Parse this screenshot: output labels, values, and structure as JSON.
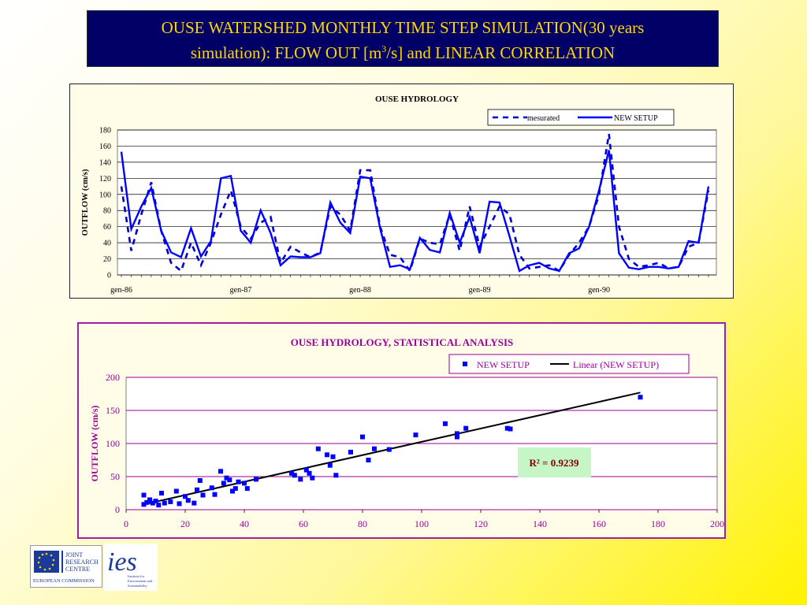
{
  "slide": {
    "title_line1": "OUSE WATERSHED MONTHLY TIME STEP SIMULATION(30 years",
    "title_line2_pre": "simulation): FLOW OUT [m",
    "title_sup": "3",
    "title_line2_post": "/s] and LINEAR CORRELATION"
  },
  "logos": {
    "jrc_lines": [
      "JOINT",
      "RESEARCH",
      "CENTRE"
    ],
    "jrc_org": "EUROPEAN COMMISSION",
    "ies_text": "ies",
    "ies_caption": [
      "Institute for",
      "Environment and",
      "Sustainability"
    ]
  },
  "chart_data": [
    {
      "type": "line",
      "title": "OUSE HYDROLOGY",
      "ylabel": "OUTFLOW (cm/s)",
      "xlabel": "",
      "ylim": [
        0,
        180
      ],
      "yticks": [
        0,
        20,
        40,
        60,
        80,
        100,
        120,
        140,
        160,
        180
      ],
      "xtick_labels": [
        "gen-86",
        "gen-87",
        "gen-88",
        "gen-89",
        "gen-90"
      ],
      "xtick_index": [
        0,
        12,
        24,
        36,
        48
      ],
      "n_points": 60,
      "grid": true,
      "legend_position": "top-right",
      "series": [
        {
          "name": "mesurated",
          "style": "dashed",
          "color": "#0000cc",
          "values": [
            110,
            30,
            75,
            115,
            55,
            15,
            5,
            40,
            12,
            40,
            75,
            105,
            60,
            45,
            65,
            72,
            15,
            35,
            28,
            22,
            28,
            85,
            75,
            55,
            130,
            130,
            60,
            25,
            22,
            5,
            45,
            40,
            38,
            75,
            30,
            85,
            35,
            60,
            85,
            75,
            25,
            8,
            10,
            12,
            5,
            25,
            40,
            60,
            100,
            175,
            60,
            20,
            10,
            12,
            15,
            8,
            10,
            35,
            40,
            105
          ]
        },
        {
          "name": "NEW SETUP",
          "style": "solid",
          "color": "#0000ff",
          "values": [
            153,
            57,
            85,
            108,
            55,
            28,
            22,
            58,
            23,
            42,
            120,
            123,
            55,
            40,
            80,
            52,
            12,
            23,
            22,
            22,
            27,
            90,
            65,
            52,
            122,
            120,
            58,
            10,
            12,
            7,
            46,
            31,
            28,
            77,
            40,
            72,
            27,
            91,
            90,
            48,
            5,
            12,
            15,
            8,
            5,
            27,
            33,
            60,
            105,
            155,
            27,
            9,
            7,
            10,
            10,
            8,
            10,
            42,
            40,
            110
          ]
        }
      ]
    },
    {
      "type": "scatter",
      "title": "OUSE HYDROLOGY, STATISTICAL ANALYSIS",
      "ylabel": "OUTFLOW (cm/s)",
      "xlabel": "",
      "xlim": [
        0,
        200
      ],
      "ylim": [
        0,
        200
      ],
      "xticks": [
        0,
        20,
        40,
        60,
        80,
        100,
        120,
        140,
        160,
        180,
        200
      ],
      "yticks": [
        0,
        50,
        100,
        150,
        200
      ],
      "grid": true,
      "legend_position": "top-right",
      "series": [
        {
          "name": "NEW SETUP",
          "color": "#0000ff",
          "points": [
            [
              6,
              22
            ],
            [
              6,
              8
            ],
            [
              7,
              11
            ],
            [
              8,
              15
            ],
            [
              9,
              10
            ],
            [
              10,
              13
            ],
            [
              11,
              7
            ],
            [
              12,
              25
            ],
            [
              13,
              10
            ],
            [
              15,
              12
            ],
            [
              17,
              28
            ],
            [
              18,
              9
            ],
            [
              20,
              20
            ],
            [
              21,
              14
            ],
            [
              23,
              10
            ],
            [
              24,
              30
            ],
            [
              25,
              44
            ],
            [
              26,
              22
            ],
            [
              29,
              33
            ],
            [
              30,
              23
            ],
            [
              32,
              58
            ],
            [
              33,
              40
            ],
            [
              34,
              48
            ],
            [
              35,
              45
            ],
            [
              36,
              28
            ],
            [
              37,
              32
            ],
            [
              38,
              42
            ],
            [
              40,
              40
            ],
            [
              41,
              32
            ],
            [
              44,
              46
            ],
            [
              56,
              55
            ],
            [
              57,
              52
            ],
            [
              59,
              46
            ],
            [
              61,
              60
            ],
            [
              62,
              55
            ],
            [
              63,
              48
            ],
            [
              65,
              92
            ],
            [
              68,
              83
            ],
            [
              69,
              67
            ],
            [
              70,
              80
            ],
            [
              71,
              52
            ],
            [
              76,
              87
            ],
            [
              80,
              110
            ],
            [
              82,
              75
            ],
            [
              84,
              92
            ],
            [
              89,
              91
            ],
            [
              98,
              113
            ],
            [
              108,
              130
            ],
            [
              112,
              115
            ],
            [
              112,
              110
            ],
            [
              115,
              123
            ],
            [
              129,
              123
            ],
            [
              130,
              122
            ],
            [
              174,
              170
            ]
          ]
        },
        {
          "name": "Linear (NEW SETUP)",
          "color": "#000000",
          "line": [
            [
              6,
              8
            ],
            [
              174,
              177
            ]
          ]
        }
      ],
      "annotation": "R² = 0.9239"
    }
  ]
}
